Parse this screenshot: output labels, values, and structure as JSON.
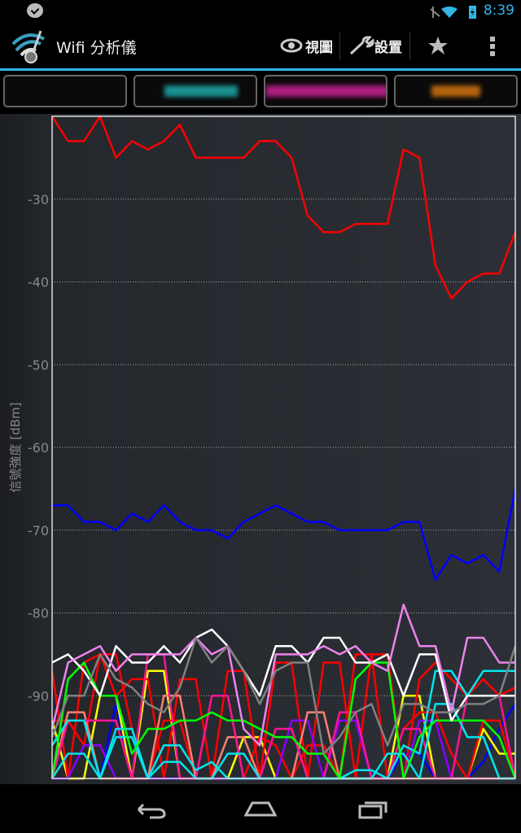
{
  "status_bar": {
    "time": "8:39",
    "icons": [
      "notification-icon",
      "mute-icon",
      "wifi-icon",
      "battery-charging-icon"
    ]
  },
  "action_bar": {
    "title": "Wifi 分析儀",
    "actions": [
      {
        "label": "視圖",
        "icon": "eye-icon"
      },
      {
        "label": "設置",
        "icon": "wrench-icon"
      },
      {
        "label": "",
        "icon": "star-icon"
      },
      {
        "label": "",
        "icon": "overflow-menu-icon"
      }
    ],
    "accent": "#33b5e5"
  },
  "legend": [
    {
      "color": ""
    },
    {
      "color": "#1fb3b3"
    },
    {
      "color": "#d4239f"
    },
    {
      "color": "#e07a10"
    }
  ],
  "chart_data": {
    "type": "line",
    "ylabel": "信號強度 [dBm]",
    "ylim": [
      -100,
      -20
    ],
    "yticks": [
      -30,
      -40,
      -50,
      -60,
      -70,
      -80,
      -90
    ],
    "ytick_labels": [
      "-30",
      "-40",
      "-50",
      "-60",
      "-70",
      "-80",
      "-90"
    ],
    "grid": true,
    "series": [
      {
        "color": "#ff0000",
        "values": [
          -20,
          -23,
          -23,
          -20,
          -25,
          -23,
          -24,
          -23,
          -21,
          -25,
          -25,
          -25,
          -25,
          -23,
          -23,
          -25,
          -32,
          -34,
          -34,
          -33,
          -33,
          -33,
          -24,
          -25,
          -38,
          -42,
          -40,
          -39,
          -39,
          -34
        ]
      },
      {
        "color": "#0000ff",
        "values": [
          -67,
          -67,
          -69,
          -69,
          -70,
          -68,
          -69,
          -67,
          -69,
          -70,
          -70,
          -71,
          -69,
          -68,
          -67,
          -68,
          -69,
          -69,
          -70,
          -70,
          -70,
          -70,
          -69,
          -69,
          -76,
          -73,
          -74,
          -73,
          -75,
          -65
        ]
      },
      {
        "color": "#808080",
        "values": [
          -95,
          -90,
          -90,
          -85,
          -88,
          -89,
          -91,
          -92,
          -89,
          -83,
          -86,
          -84,
          -87,
          -91,
          -87,
          -86,
          -86,
          -97,
          -95,
          -92,
          -91,
          -96,
          -91,
          -91,
          -92,
          -92,
          -91,
          -91,
          -90,
          -84
        ]
      },
      {
        "color": "#ee82ee",
        "values": [
          -94,
          -86,
          -85,
          -84,
          -87,
          -85,
          -85,
          -85,
          -85,
          -83,
          -85,
          -84,
          -94,
          -96,
          -85,
          -85,
          -85,
          -84,
          -85,
          -84,
          -86,
          -87,
          -79,
          -84,
          -84,
          -92,
          -83,
          -83,
          -86,
          -86
        ]
      },
      {
        "color": "#ffffff",
        "values": [
          -86,
          -85,
          -87,
          -90,
          -84,
          -86,
          -86,
          -84,
          -86,
          -83,
          -82,
          -84,
          -87,
          -90,
          -84,
          -84,
          -86,
          -83,
          -83,
          -86,
          -86,
          -85,
          -90,
          -85,
          -85,
          -93,
          -90,
          -90,
          -90,
          -90
        ]
      },
      {
        "color": "#00ff00",
        "values": [
          -100,
          -88,
          -86,
          -90,
          -90,
          -97,
          -94,
          -94,
          -93,
          -93,
          -92,
          -93,
          -93,
          -94,
          -95,
          -95,
          -97,
          -97,
          -100,
          -88,
          -86,
          -86,
          -100,
          -95,
          -93,
          -93,
          -93,
          -93,
          -95,
          -100
        ]
      },
      {
        "color": "#00e5ee",
        "values": [
          -100,
          -97,
          -97,
          -100,
          -94,
          -94,
          -100,
          -96,
          -96,
          -99,
          -98,
          -100,
          -100,
          -100,
          -100,
          -100,
          -100,
          -100,
          -100,
          -99,
          -99,
          -100,
          -96,
          -97,
          -87,
          -87,
          -90,
          -87,
          -87,
          -87
        ]
      },
      {
        "color": "#00e5ee",
        "values": [
          -96,
          -93,
          -93,
          -100,
          -95,
          -95,
          -100,
          -98,
          -98,
          -100,
          -100,
          -97,
          -97,
          -100,
          -100,
          -100,
          -100,
          -100,
          -100,
          -100,
          -100,
          -97,
          -97,
          -100,
          -91,
          -91,
          -95,
          -95,
          -100,
          -100
        ]
      },
      {
        "color": "#ff1493",
        "values": [
          -100,
          -93,
          -93,
          -93,
          -93,
          -100,
          -85,
          -85,
          -100,
          -100,
          -90,
          -90,
          -100,
          -100,
          -94,
          -94,
          -100,
          -100,
          -92,
          -92,
          -100,
          -100,
          -94,
          -94,
          -100,
          -100,
          -90,
          -90,
          -90,
          -100
        ]
      },
      {
        "color": "#fa8072",
        "values": [
          -100,
          -92,
          -92,
          -100,
          -100,
          -100,
          -100,
          -90,
          -90,
          -100,
          -100,
          -95,
          -95,
          -100,
          -100,
          -100,
          -92,
          -92,
          -100,
          -100,
          -100,
          -100,
          -100,
          -100,
          -100,
          -100,
          -100,
          -100,
          -100,
          -100
        ]
      },
      {
        "color": "#8a00ff",
        "values": [
          -100,
          -100,
          -96,
          -96,
          -100,
          -100,
          -100,
          -100,
          -100,
          -100,
          -100,
          -100,
          -100,
          -100,
          -100,
          -93,
          -93,
          -100,
          -93,
          -93,
          -100,
          -100,
          -100,
          -93,
          -93,
          -100,
          -100,
          -100,
          -100,
          -100
        ]
      },
      {
        "color": "#ff0000",
        "values": [
          -87,
          -100,
          -86,
          -85,
          -90,
          -88,
          -88,
          -100,
          -88,
          -88,
          -100,
          -87,
          -87,
          -100,
          -86,
          -86,
          -100,
          -86,
          -86,
          -100,
          -85,
          -85,
          -100,
          -88,
          -86,
          -88,
          -90,
          -88,
          -90,
          -89
        ]
      },
      {
        "color": "#ff0000",
        "values": [
          -93,
          -93,
          -96,
          -85,
          -85,
          -94,
          -100,
          -93,
          -93,
          -100,
          -90,
          -90,
          -100,
          -95,
          -96,
          -100,
          -96,
          -96,
          -100,
          -85,
          -85,
          -100,
          -94,
          -92,
          -92,
          -97,
          -100,
          -93,
          -93,
          -100
        ]
      },
      {
        "color": "#ffff00",
        "values": [
          -93,
          -100,
          -100,
          -90,
          -90,
          -100,
          -87,
          -87,
          -100,
          -100,
          -100,
          -100,
          -95,
          -95,
          -100,
          -100,
          -100,
          -100,
          -100,
          -100,
          -100,
          -100,
          -90,
          -90,
          -100,
          -100,
          -100,
          -94,
          -97,
          -97
        ]
      },
      {
        "color": "#0000ff",
        "values": [
          -100,
          -93,
          -93,
          -100,
          -91,
          -100,
          -100,
          -100,
          -100,
          -100,
          -100,
          -100,
          -100,
          -100,
          -100,
          -100,
          -100,
          -100,
          -100,
          -100,
          -100,
          -100,
          -97,
          -97,
          -100,
          -100,
          -100,
          -98,
          -94,
          -91
        ]
      }
    ]
  }
}
